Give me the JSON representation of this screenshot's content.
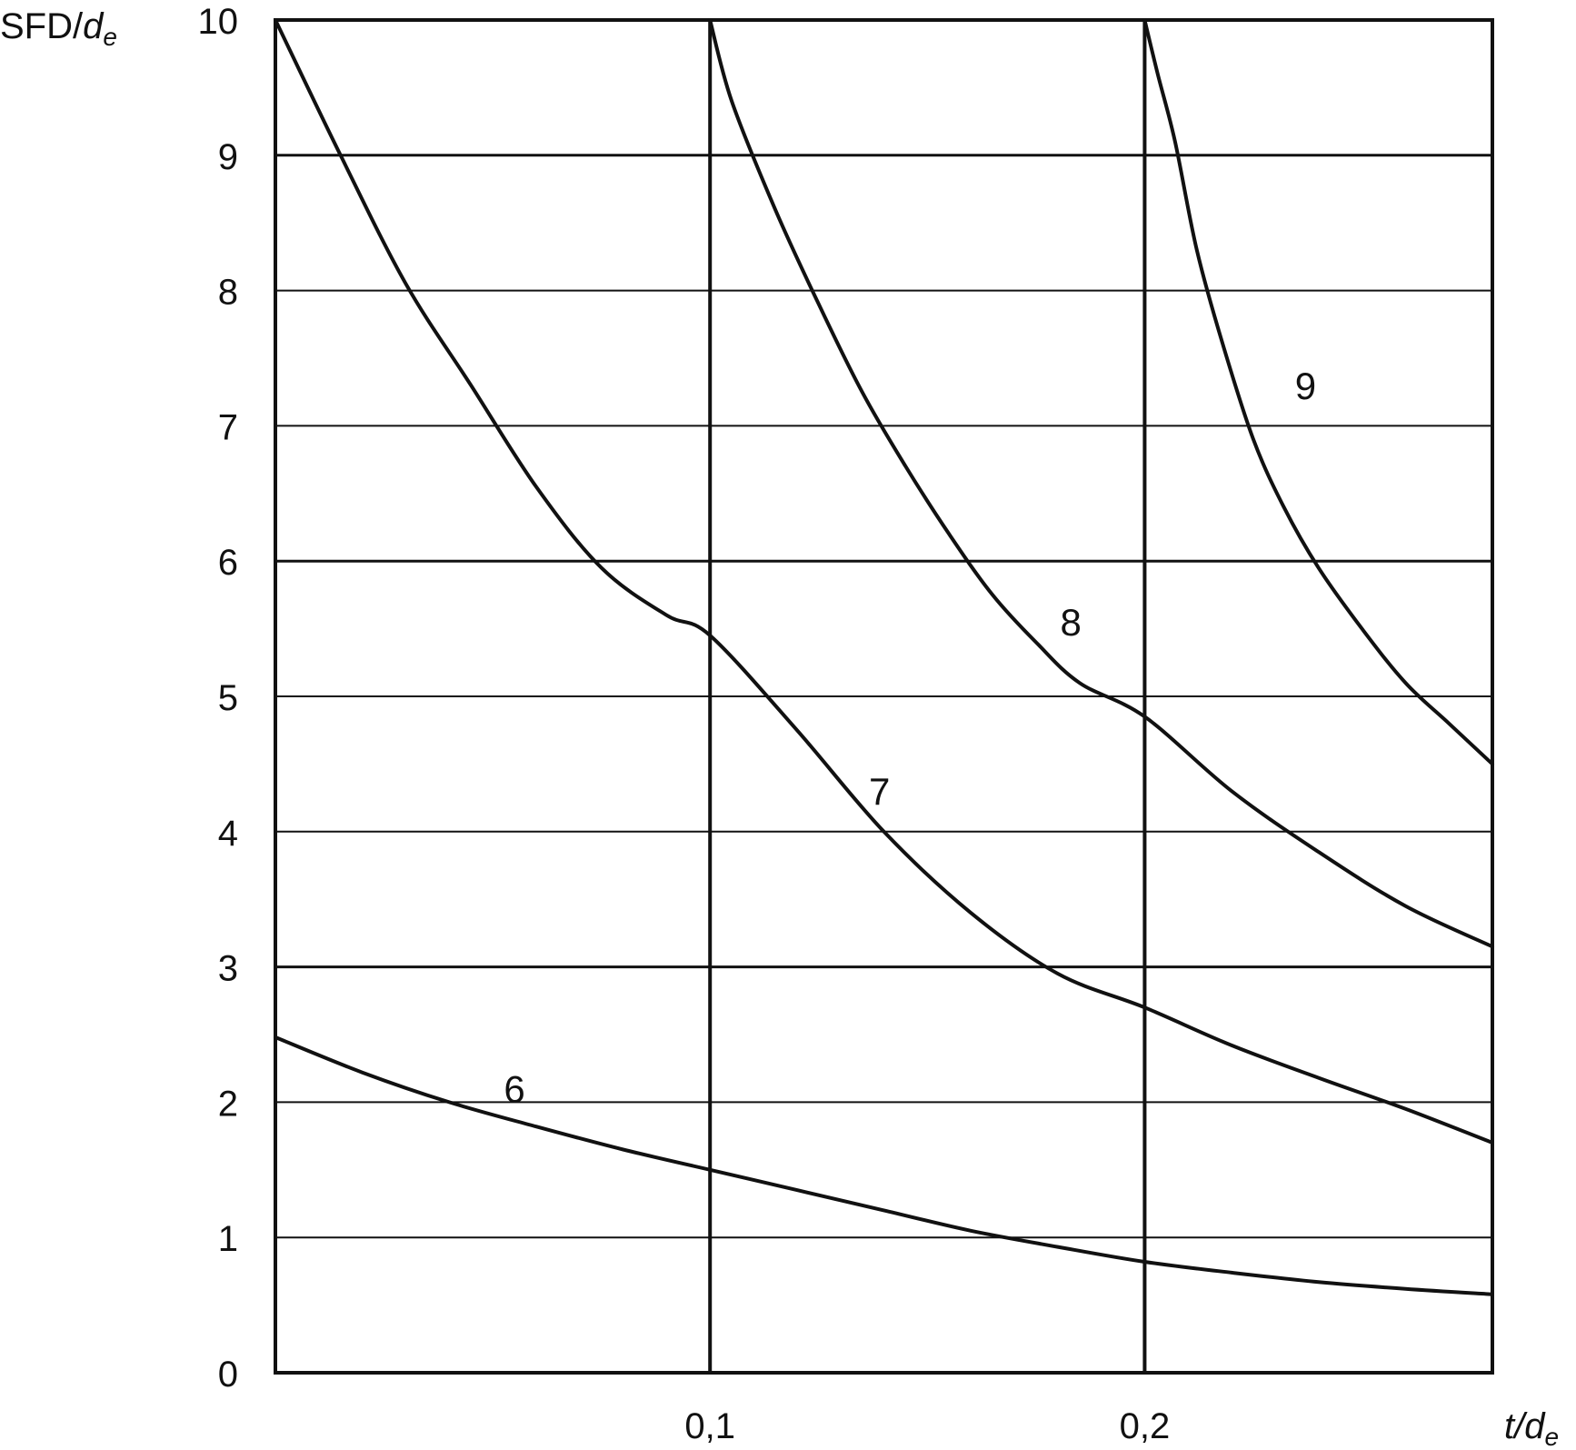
{
  "chart_data": {
    "type": "line",
    "xlabel": "t/de",
    "xlabel_main": "t/d",
    "xlabel_sub": "e",
    "ylabel": "SFD/de",
    "ylabel_main": "SFD/",
    "ylabel_italic": "d",
    "ylabel_sub": "e",
    "xlim": [
      0,
      0.28
    ],
    "ylim": [
      0,
      10
    ],
    "grid": true,
    "x_ticks": [
      0.1,
      0.2
    ],
    "x_tick_labels": [
      "0,1",
      "0,2"
    ],
    "y_ticks": [
      0,
      1,
      2,
      3,
      4,
      5,
      6,
      7,
      8,
      9,
      10
    ],
    "y_tick_labels": [
      "0",
      "1",
      "2",
      "3",
      "4",
      "5",
      "6",
      "7",
      "8",
      "9",
      "10"
    ],
    "series": [
      {
        "name": "6",
        "x": [
          0.0,
          0.02,
          0.04,
          0.06,
          0.08,
          0.1,
          0.12,
          0.14,
          0.16,
          0.18,
          0.2,
          0.22,
          0.24,
          0.26,
          0.28
        ],
        "y": [
          2.48,
          2.22,
          2.0,
          1.82,
          1.65,
          1.5,
          1.35,
          1.2,
          1.05,
          0.93,
          0.82,
          0.74,
          0.67,
          0.62,
          0.58
        ]
      },
      {
        "name": "7",
        "x": [
          0.0,
          0.015,
          0.03,
          0.045,
          0.06,
          0.075,
          0.09,
          0.1,
          0.12,
          0.14,
          0.16,
          0.18,
          0.2,
          0.22,
          0.24,
          0.26,
          0.28
        ],
        "y": [
          10.0,
          9.0,
          8.05,
          7.3,
          6.55,
          5.95,
          5.6,
          5.45,
          4.75,
          4.0,
          3.4,
          2.95,
          2.7,
          2.42,
          2.18,
          1.95,
          1.7
        ],
        "label_pos": [
          0.139,
          4.3
        ]
      },
      {
        "name": "8",
        "x": [
          0.0,
          0.1,
          0.105,
          0.115,
          0.125,
          0.135,
          0.145,
          0.155,
          0.165,
          0.175,
          0.185,
          0.2,
          0.22,
          0.24,
          0.26,
          0.28
        ],
        "y": [
          null,
          10.0,
          9.4,
          8.6,
          7.9,
          7.25,
          6.7,
          6.2,
          5.75,
          5.4,
          5.1,
          4.85,
          4.3,
          3.85,
          3.45,
          3.15
        ],
        "label_pos": [
          0.183,
          5.55
        ]
      },
      {
        "name": "9",
        "x": [
          0.2,
          0.203,
          0.207,
          0.212,
          0.218,
          0.225,
          0.232,
          0.24,
          0.25,
          0.26,
          0.27,
          0.28
        ],
        "y": [
          10.0,
          9.6,
          9.1,
          8.3,
          7.6,
          6.9,
          6.4,
          5.95,
          5.5,
          5.1,
          4.8,
          4.5
        ],
        "label_pos": [
          0.237,
          7.3
        ]
      }
    ],
    "series_label_positions": [
      {
        "name": "6",
        "x": 0.055,
        "y": 2.1
      },
      {
        "name": "7",
        "x": 0.139,
        "y": 4.3
      },
      {
        "name": "8",
        "x": 0.183,
        "y": 5.55
      },
      {
        "name": "9",
        "x": 0.237,
        "y": 7.3
      }
    ],
    "colors": {
      "line": "#111111",
      "grid": "#111111",
      "background": "#ffffff"
    }
  }
}
